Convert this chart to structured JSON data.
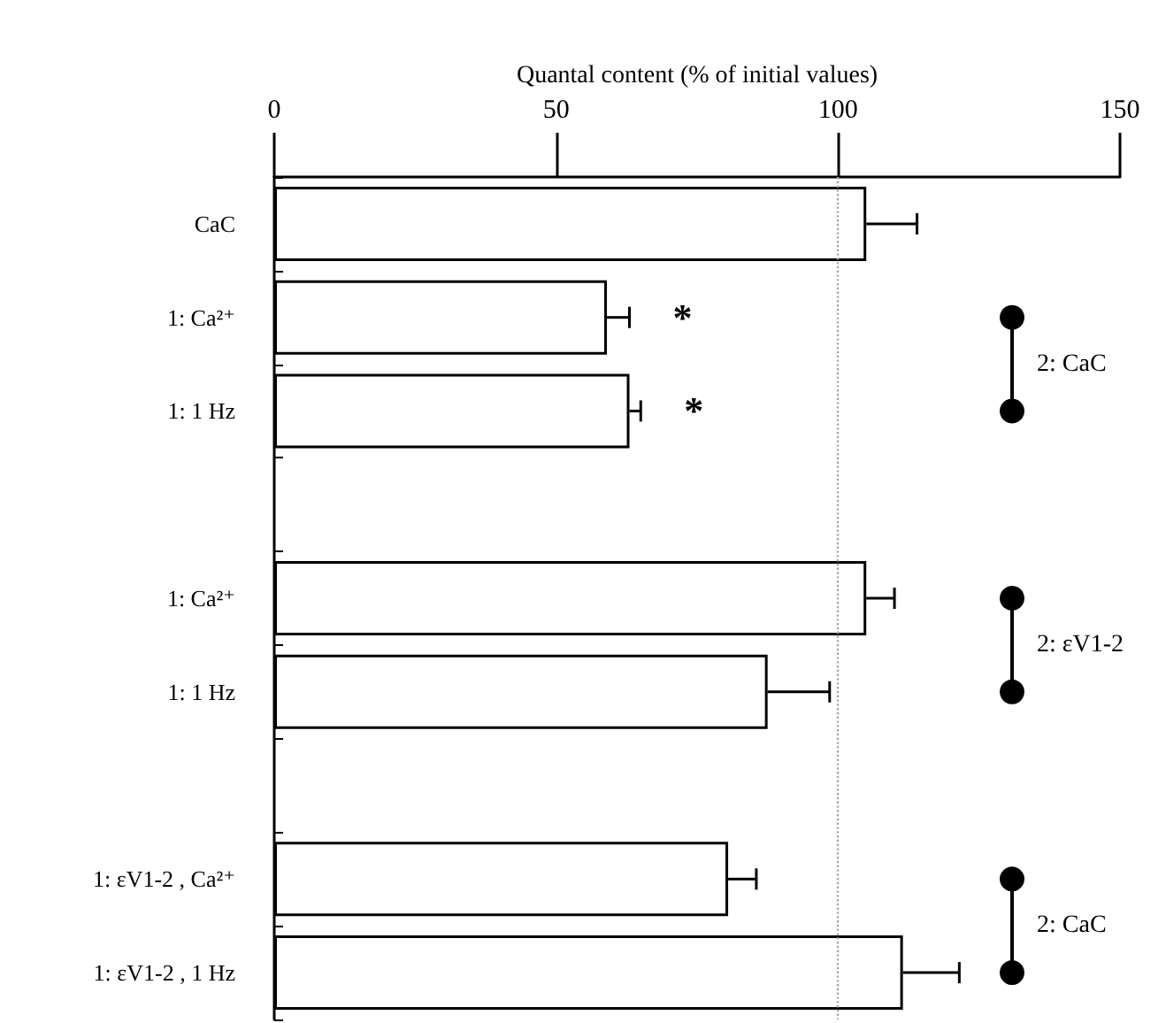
{
  "chart_data": {
    "type": "bar",
    "orientation": "horizontal",
    "xlabel": "Quantal content (% of initial values)",
    "categories": [
      "CaC",
      "1: Ca²⁺",
      "1: 1 Hz",
      null,
      "1: Ca²⁺",
      "1: 1 Hz",
      null,
      "1: εV1-2 , Ca²⁺",
      "1: εV1-2 , 1 Hz"
    ],
    "values": [
      105,
      59,
      63,
      null,
      105,
      87.5,
      null,
      80.5,
      111.5
    ],
    "errors": [
      9,
      4,
      2,
      null,
      5,
      11,
      null,
      5,
      10
    ],
    "color": "#ffffff",
    "xlim": [
      0,
      150
    ],
    "xticks": [
      0,
      50,
      100,
      150
    ],
    "grid": false,
    "ref_lines": [
      {
        "axis": "x",
        "value": 100,
        "color": "#aaaaaa",
        "line_style": "dotted"
      }
    ],
    "annotations": [
      "*",
      "*",
      "2: CaC",
      "2: εV1-2",
      "2: CaC"
    ]
  }
}
